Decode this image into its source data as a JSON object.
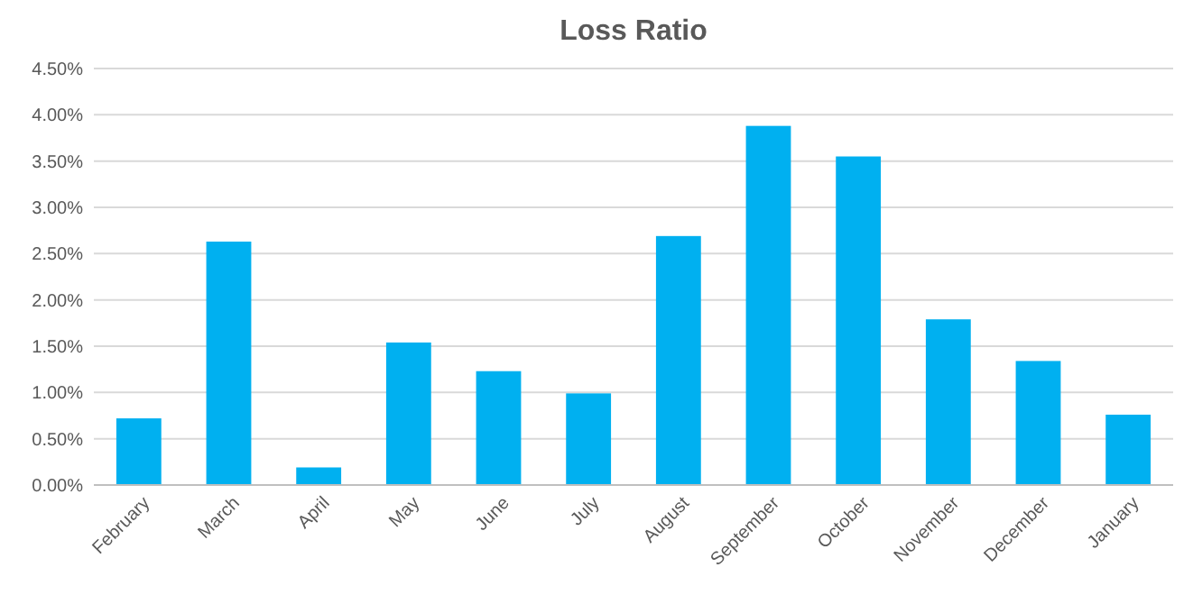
{
  "chart_data": {
    "type": "bar",
    "title": "Loss Ratio",
    "categories": [
      "February",
      "March",
      "April",
      "May",
      "June",
      "July",
      "August",
      "September",
      "October",
      "November",
      "December",
      "January"
    ],
    "values": [
      0.72,
      2.63,
      0.19,
      1.54,
      1.23,
      0.99,
      2.69,
      3.88,
      3.55,
      1.79,
      1.34,
      0.76
    ],
    "color": "#00b0f0",
    "ylim": [
      0,
      4.5
    ],
    "yticks": [
      {
        "value": 0,
        "label": "0.00%"
      },
      {
        "value": 0.5,
        "label": "0.50%"
      },
      {
        "value": 1,
        "label": "1.00%"
      },
      {
        "value": 1.5,
        "label": "1.50%"
      },
      {
        "value": 2,
        "label": "2.00%"
      },
      {
        "value": 2.5,
        "label": "2.50%"
      },
      {
        "value": 3,
        "label": "3.00%"
      },
      {
        "value": 3.5,
        "label": "3.50%"
      },
      {
        "value": 4,
        "label": "4.00%"
      },
      {
        "value": 4.5,
        "label": "4.50%"
      }
    ],
    "grid": "y"
  }
}
